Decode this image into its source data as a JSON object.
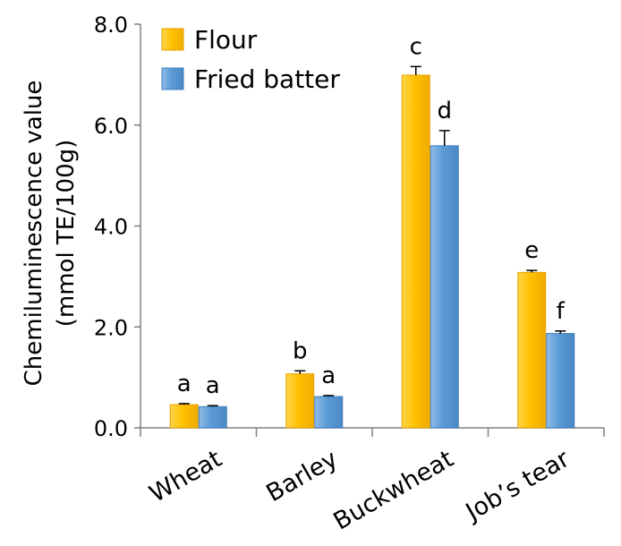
{
  "chart_data": {
    "type": "bar",
    "categories": [
      "Wheat",
      "Barley",
      "Buckwheat",
      "Job’s tear"
    ],
    "series": [
      {
        "name": "Flour",
        "values": [
          0.46,
          1.07,
          6.99,
          3.08
        ],
        "errors": [
          0.02,
          0.06,
          0.17,
          0.04
        ],
        "significance": [
          "a",
          "b",
          "c",
          "e"
        ]
      },
      {
        "name": "Fried batter",
        "values": [
          0.42,
          0.62,
          5.59,
          1.87
        ],
        "errors": [
          0.02,
          0.02,
          0.3,
          0.05
        ],
        "significance": [
          "a",
          "a",
          "d",
          "f"
        ]
      }
    ],
    "ylabel_line1": "Chemiluminescence value",
    "ylabel_line2": "(mmol TE/100g)",
    "xlabel": "",
    "ylim": [
      0,
      8
    ],
    "yticks": [
      0,
      2,
      4,
      6,
      8
    ],
    "ytick_labels": [
      "0.0",
      "2.0",
      "4.0",
      "6.0",
      "8.0"
    ],
    "legend_position": "top-left",
    "grid": false,
    "colors": {
      "Flour": "#ffc000",
      "Flour_edge": "#e6a200",
      "Fried batter": "#5b9bd5",
      "Fried batter_edge": "#3f7fbf",
      "axis": "#808080"
    }
  }
}
